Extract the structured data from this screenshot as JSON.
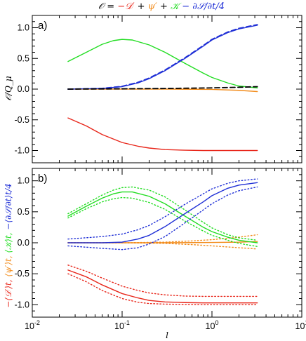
{
  "title_parts": [
    {
      "text": "𝒪 = ",
      "color": "#000000"
    },
    {
      "text": "−𝒟′",
      "color": "#e8261a"
    },
    {
      "text": " + ",
      "color": "#000000"
    },
    {
      "text": "ψ′",
      "color": "#f28c1c"
    },
    {
      "text": " + ",
      "color": "#000000"
    },
    {
      "text": "𝒦",
      "color": "#22dd22"
    },
    {
      "text": " − ∂𝒮/∂t/4",
      "color": "#1f2fd6"
    }
  ],
  "xlabel": "l",
  "colors": {
    "red": "#e8261a",
    "orange": "#f28c1c",
    "green": "#22dd22",
    "blue": "#1f2fd6",
    "black": "#000000"
  },
  "chart_data": [
    {
      "type": "line",
      "panel_label": "a)",
      "xscale": "log",
      "xlim": [
        0.01,
        10
      ],
      "ylim": [
        -1.2,
        1.2
      ],
      "yticks": [
        1.0,
        0.5,
        0.0,
        -0.5,
        -1.0
      ],
      "ytick_labels": [
        "1.0",
        "0.5",
        "0.0",
        "-0.5",
        "-1.0"
      ],
      "ylabel": "𝒪/Q_μ",
      "xlabel": "",
      "series": [
        {
          "color": "red",
          "style": "solid",
          "x": [
            0.025,
            0.04,
            0.06,
            0.1,
            0.15,
            0.2,
            0.3,
            0.5,
            0.8,
            1.0,
            1.5,
            2.0,
            3.2
          ],
          "y": [
            -0.47,
            -0.6,
            -0.74,
            -0.87,
            -0.93,
            -0.96,
            -0.985,
            -0.995,
            -1.0,
            -1.0,
            -1.0,
            -1.0,
            -1.0
          ]
        },
        {
          "color": "orange",
          "style": "solid",
          "x": [
            0.025,
            0.1,
            0.3,
            1.0,
            2.0,
            3.2
          ],
          "y": [
            0.0,
            0.0,
            0.0,
            -0.005,
            -0.02,
            -0.04
          ]
        },
        {
          "color": "green",
          "style": "solid",
          "x": [
            0.025,
            0.04,
            0.06,
            0.08,
            0.1,
            0.13,
            0.2,
            0.3,
            0.5,
            0.8,
            1.0,
            1.5,
            2.0,
            3.2
          ],
          "y": [
            0.45,
            0.6,
            0.73,
            0.79,
            0.81,
            0.8,
            0.72,
            0.6,
            0.42,
            0.26,
            0.19,
            0.1,
            0.05,
            0.02
          ]
        },
        {
          "color": "blue",
          "style": "solid",
          "x": [
            0.025,
            0.06,
            0.1,
            0.15,
            0.2,
            0.3,
            0.5,
            0.8,
            1.0,
            1.5,
            2.0,
            3.2
          ],
          "y": [
            0.0,
            0.01,
            0.04,
            0.1,
            0.17,
            0.3,
            0.5,
            0.7,
            0.8,
            0.92,
            0.98,
            1.04
          ]
        },
        {
          "color": "blue",
          "style": "dashed",
          "x": [
            0.025,
            0.06,
            0.1,
            0.15,
            0.2,
            0.3,
            0.5,
            0.8,
            1.0,
            1.5,
            2.0,
            3.2
          ],
          "y": [
            0.0,
            0.012,
            0.045,
            0.11,
            0.18,
            0.31,
            0.51,
            0.71,
            0.81,
            0.93,
            0.99,
            1.05
          ]
        },
        {
          "color": "black",
          "style": "dashed",
          "x": [
            0.025,
            0.1,
            0.3,
            1.0,
            2.0,
            3.2
          ],
          "y": [
            0.0,
            0.005,
            0.01,
            0.02,
            0.03,
            0.04
          ]
        }
      ]
    },
    {
      "type": "line",
      "panel_label": "b)",
      "xscale": "log",
      "xlim": [
        0.01,
        10
      ],
      "ylim": [
        -1.2,
        1.2
      ],
      "yticks": [
        1.0,
        0.5,
        0.0,
        -0.5,
        -1.0
      ],
      "ytick_labels": [
        "1.0",
        "0.5",
        "0.0",
        "-0.5",
        "-1.0"
      ],
      "xticks": [
        0.01,
        0.1,
        1,
        10
      ],
      "ylabel_parts": [
        {
          "text": "−⟨𝒟′⟩t, ",
          "color": "red"
        },
        {
          "text": "⟨ψ′⟩t, ",
          "color": "orange"
        },
        {
          "text": "⟨𝒦⟩t, ",
          "color": "green"
        },
        {
          "text": "−⟨∂𝒮/∂t⟩t/4",
          "color": "blue"
        }
      ],
      "series": [
        {
          "color": "red",
          "style": "solid",
          "x": [
            0.025,
            0.04,
            0.06,
            0.1,
            0.15,
            0.2,
            0.3,
            0.5,
            0.8,
            1.0,
            1.5,
            2.0,
            3.2
          ],
          "y": [
            -0.44,
            -0.55,
            -0.68,
            -0.82,
            -0.89,
            -0.93,
            -0.955,
            -0.965,
            -0.97,
            -0.97,
            -0.97,
            -0.97,
            -0.97
          ]
        },
        {
          "color": "red",
          "style": "dotted",
          "x": [
            0.025,
            0.04,
            0.06,
            0.1,
            0.15,
            0.2,
            0.3,
            0.5,
            0.8,
            1.0,
            2.0,
            3.2
          ],
          "y": [
            -0.36,
            -0.46,
            -0.57,
            -0.7,
            -0.77,
            -0.81,
            -0.84,
            -0.86,
            -0.865,
            -0.865,
            -0.865,
            -0.865
          ]
        },
        {
          "color": "red",
          "style": "dotted",
          "x": [
            0.025,
            0.04,
            0.06,
            0.1,
            0.15,
            0.2,
            0.3,
            0.5,
            0.8,
            1.0,
            2.0,
            3.2
          ],
          "y": [
            -0.5,
            -0.63,
            -0.77,
            -0.9,
            -0.96,
            -0.98,
            -0.99,
            -0.995,
            -1.0,
            -1.0,
            -1.0,
            -1.0
          ]
        },
        {
          "color": "orange",
          "style": "solid",
          "x": [
            0.025,
            0.1,
            0.3,
            1.0,
            2.0,
            3.2
          ],
          "y": [
            0.0,
            0.0,
            0.0,
            0.005,
            0.01,
            0.02
          ]
        },
        {
          "color": "orange",
          "style": "dotted",
          "x": [
            0.025,
            0.1,
            0.3,
            0.6,
            1.0,
            2.0,
            3.2
          ],
          "y": [
            0.0,
            0.0,
            0.01,
            0.03,
            0.05,
            0.09,
            0.13
          ]
        },
        {
          "color": "orange",
          "style": "dotted",
          "x": [
            0.025,
            0.1,
            0.3,
            0.6,
            1.0,
            2.0,
            3.2
          ],
          "y": [
            0.0,
            0.0,
            -0.01,
            -0.03,
            -0.05,
            -0.08,
            -0.1
          ]
        },
        {
          "color": "green",
          "style": "solid",
          "x": [
            0.025,
            0.04,
            0.06,
            0.08,
            0.1,
            0.13,
            0.2,
            0.3,
            0.5,
            0.8,
            1.0,
            1.5,
            2.0,
            3.2
          ],
          "y": [
            0.43,
            0.59,
            0.72,
            0.79,
            0.82,
            0.82,
            0.75,
            0.63,
            0.43,
            0.25,
            0.18,
            0.09,
            0.04,
            0.0
          ]
        },
        {
          "color": "green",
          "style": "dotted",
          "x": [
            0.025,
            0.04,
            0.06,
            0.08,
            0.1,
            0.13,
            0.2,
            0.3,
            0.5,
            0.8,
            1.0,
            1.5,
            2.0,
            3.2
          ],
          "y": [
            0.47,
            0.63,
            0.77,
            0.85,
            0.89,
            0.9,
            0.85,
            0.74,
            0.53,
            0.33,
            0.24,
            0.13,
            0.08,
            0.04
          ]
        },
        {
          "color": "green",
          "style": "dotted",
          "x": [
            0.025,
            0.04,
            0.06,
            0.08,
            0.1,
            0.13,
            0.2,
            0.3,
            0.5,
            0.8,
            1.0,
            1.5,
            2.0,
            3.2
          ],
          "y": [
            0.4,
            0.55,
            0.66,
            0.71,
            0.73,
            0.72,
            0.65,
            0.54,
            0.35,
            0.19,
            0.12,
            0.04,
            -0.01,
            -0.06
          ]
        },
        {
          "color": "blue",
          "style": "solid",
          "x": [
            0.025,
            0.06,
            0.1,
            0.15,
            0.2,
            0.3,
            0.5,
            0.8,
            1.0,
            1.5,
            2.0,
            3.2
          ],
          "y": [
            0.0,
            0.0,
            0.01,
            0.06,
            0.12,
            0.26,
            0.47,
            0.66,
            0.76,
            0.88,
            0.93,
            0.97
          ]
        },
        {
          "color": "blue",
          "style": "dotted",
          "x": [
            0.025,
            0.06,
            0.1,
            0.15,
            0.2,
            0.3,
            0.5,
            0.8,
            1.0,
            1.5,
            2.0,
            3.2
          ],
          "y": [
            0.06,
            0.1,
            0.14,
            0.21,
            0.28,
            0.42,
            0.62,
            0.79,
            0.87,
            0.96,
            1.0,
            1.03
          ]
        },
        {
          "color": "blue",
          "style": "dotted",
          "x": [
            0.025,
            0.06,
            0.1,
            0.15,
            0.2,
            0.3,
            0.5,
            0.8,
            1.0,
            1.5,
            2.0,
            3.2
          ],
          "y": [
            -0.05,
            -0.09,
            -0.11,
            -0.08,
            -0.02,
            0.1,
            0.32,
            0.53,
            0.63,
            0.77,
            0.84,
            0.9
          ]
        }
      ]
    }
  ]
}
